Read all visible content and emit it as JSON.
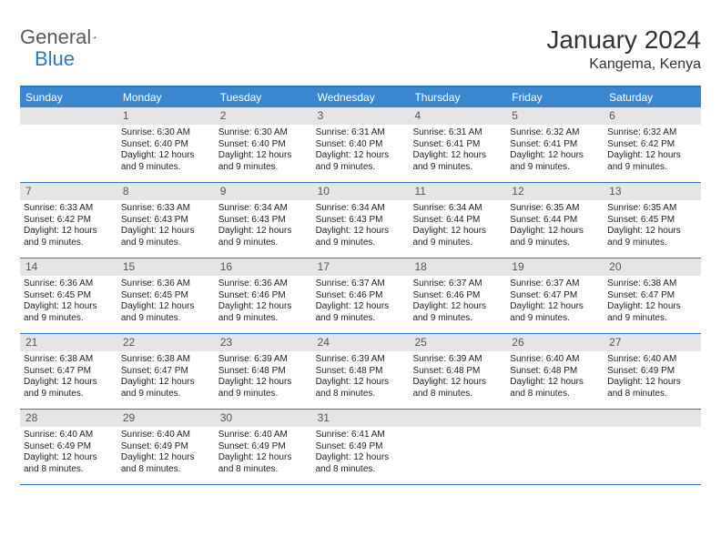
{
  "logo": {
    "text1": "General",
    "text2": "Blue"
  },
  "title": {
    "month": "January 2024",
    "location": "Kangema, Kenya"
  },
  "colors": {
    "header_bg": "#3a87d0",
    "header_text": "#ffffff",
    "border": "#2f75c1",
    "daynum_bg": "#e4e5e6",
    "text": "#222222",
    "logo_gray": "#5a5a5a",
    "logo_blue": "#2f75c1",
    "page_bg": "#ffffff"
  },
  "typography": {
    "title_size": 28,
    "location_size": 16,
    "header_size": 12,
    "cell_size": 10
  },
  "day_names": [
    "Sunday",
    "Monday",
    "Tuesday",
    "Wednesday",
    "Thursday",
    "Friday",
    "Saturday"
  ],
  "weeks": [
    [
      {
        "day": "",
        "sunrise": "",
        "sunset": "",
        "daylight": ""
      },
      {
        "day": "1",
        "sunrise": "Sunrise: 6:30 AM",
        "sunset": "Sunset: 6:40 PM",
        "daylight": "Daylight: 12 hours and 9 minutes."
      },
      {
        "day": "2",
        "sunrise": "Sunrise: 6:30 AM",
        "sunset": "Sunset: 6:40 PM",
        "daylight": "Daylight: 12 hours and 9 minutes."
      },
      {
        "day": "3",
        "sunrise": "Sunrise: 6:31 AM",
        "sunset": "Sunset: 6:40 PM",
        "daylight": "Daylight: 12 hours and 9 minutes."
      },
      {
        "day": "4",
        "sunrise": "Sunrise: 6:31 AM",
        "sunset": "Sunset: 6:41 PM",
        "daylight": "Daylight: 12 hours and 9 minutes."
      },
      {
        "day": "5",
        "sunrise": "Sunrise: 6:32 AM",
        "sunset": "Sunset: 6:41 PM",
        "daylight": "Daylight: 12 hours and 9 minutes."
      },
      {
        "day": "6",
        "sunrise": "Sunrise: 6:32 AM",
        "sunset": "Sunset: 6:42 PM",
        "daylight": "Daylight: 12 hours and 9 minutes."
      }
    ],
    [
      {
        "day": "7",
        "sunrise": "Sunrise: 6:33 AM",
        "sunset": "Sunset: 6:42 PM",
        "daylight": "Daylight: 12 hours and 9 minutes."
      },
      {
        "day": "8",
        "sunrise": "Sunrise: 6:33 AM",
        "sunset": "Sunset: 6:43 PM",
        "daylight": "Daylight: 12 hours and 9 minutes."
      },
      {
        "day": "9",
        "sunrise": "Sunrise: 6:34 AM",
        "sunset": "Sunset: 6:43 PM",
        "daylight": "Daylight: 12 hours and 9 minutes."
      },
      {
        "day": "10",
        "sunrise": "Sunrise: 6:34 AM",
        "sunset": "Sunset: 6:43 PM",
        "daylight": "Daylight: 12 hours and 9 minutes."
      },
      {
        "day": "11",
        "sunrise": "Sunrise: 6:34 AM",
        "sunset": "Sunset: 6:44 PM",
        "daylight": "Daylight: 12 hours and 9 minutes."
      },
      {
        "day": "12",
        "sunrise": "Sunrise: 6:35 AM",
        "sunset": "Sunset: 6:44 PM",
        "daylight": "Daylight: 12 hours and 9 minutes."
      },
      {
        "day": "13",
        "sunrise": "Sunrise: 6:35 AM",
        "sunset": "Sunset: 6:45 PM",
        "daylight": "Daylight: 12 hours and 9 minutes."
      }
    ],
    [
      {
        "day": "14",
        "sunrise": "Sunrise: 6:36 AM",
        "sunset": "Sunset: 6:45 PM",
        "daylight": "Daylight: 12 hours and 9 minutes."
      },
      {
        "day": "15",
        "sunrise": "Sunrise: 6:36 AM",
        "sunset": "Sunset: 6:45 PM",
        "daylight": "Daylight: 12 hours and 9 minutes."
      },
      {
        "day": "16",
        "sunrise": "Sunrise: 6:36 AM",
        "sunset": "Sunset: 6:46 PM",
        "daylight": "Daylight: 12 hours and 9 minutes."
      },
      {
        "day": "17",
        "sunrise": "Sunrise: 6:37 AM",
        "sunset": "Sunset: 6:46 PM",
        "daylight": "Daylight: 12 hours and 9 minutes."
      },
      {
        "day": "18",
        "sunrise": "Sunrise: 6:37 AM",
        "sunset": "Sunset: 6:46 PM",
        "daylight": "Daylight: 12 hours and 9 minutes."
      },
      {
        "day": "19",
        "sunrise": "Sunrise: 6:37 AM",
        "sunset": "Sunset: 6:47 PM",
        "daylight": "Daylight: 12 hours and 9 minutes."
      },
      {
        "day": "20",
        "sunrise": "Sunrise: 6:38 AM",
        "sunset": "Sunset: 6:47 PM",
        "daylight": "Daylight: 12 hours and 9 minutes."
      }
    ],
    [
      {
        "day": "21",
        "sunrise": "Sunrise: 6:38 AM",
        "sunset": "Sunset: 6:47 PM",
        "daylight": "Daylight: 12 hours and 9 minutes."
      },
      {
        "day": "22",
        "sunrise": "Sunrise: 6:38 AM",
        "sunset": "Sunset: 6:47 PM",
        "daylight": "Daylight: 12 hours and 9 minutes."
      },
      {
        "day": "23",
        "sunrise": "Sunrise: 6:39 AM",
        "sunset": "Sunset: 6:48 PM",
        "daylight": "Daylight: 12 hours and 9 minutes."
      },
      {
        "day": "24",
        "sunrise": "Sunrise: 6:39 AM",
        "sunset": "Sunset: 6:48 PM",
        "daylight": "Daylight: 12 hours and 8 minutes."
      },
      {
        "day": "25",
        "sunrise": "Sunrise: 6:39 AM",
        "sunset": "Sunset: 6:48 PM",
        "daylight": "Daylight: 12 hours and 8 minutes."
      },
      {
        "day": "26",
        "sunrise": "Sunrise: 6:40 AM",
        "sunset": "Sunset: 6:48 PM",
        "daylight": "Daylight: 12 hours and 8 minutes."
      },
      {
        "day": "27",
        "sunrise": "Sunrise: 6:40 AM",
        "sunset": "Sunset: 6:49 PM",
        "daylight": "Daylight: 12 hours and 8 minutes."
      }
    ],
    [
      {
        "day": "28",
        "sunrise": "Sunrise: 6:40 AM",
        "sunset": "Sunset: 6:49 PM",
        "daylight": "Daylight: 12 hours and 8 minutes."
      },
      {
        "day": "29",
        "sunrise": "Sunrise: 6:40 AM",
        "sunset": "Sunset: 6:49 PM",
        "daylight": "Daylight: 12 hours and 8 minutes."
      },
      {
        "day": "30",
        "sunrise": "Sunrise: 6:40 AM",
        "sunset": "Sunset: 6:49 PM",
        "daylight": "Daylight: 12 hours and 8 minutes."
      },
      {
        "day": "31",
        "sunrise": "Sunrise: 6:41 AM",
        "sunset": "Sunset: 6:49 PM",
        "daylight": "Daylight: 12 hours and 8 minutes."
      },
      {
        "day": "",
        "sunrise": "",
        "sunset": "",
        "daylight": ""
      },
      {
        "day": "",
        "sunrise": "",
        "sunset": "",
        "daylight": ""
      },
      {
        "day": "",
        "sunrise": "",
        "sunset": "",
        "daylight": ""
      }
    ]
  ]
}
